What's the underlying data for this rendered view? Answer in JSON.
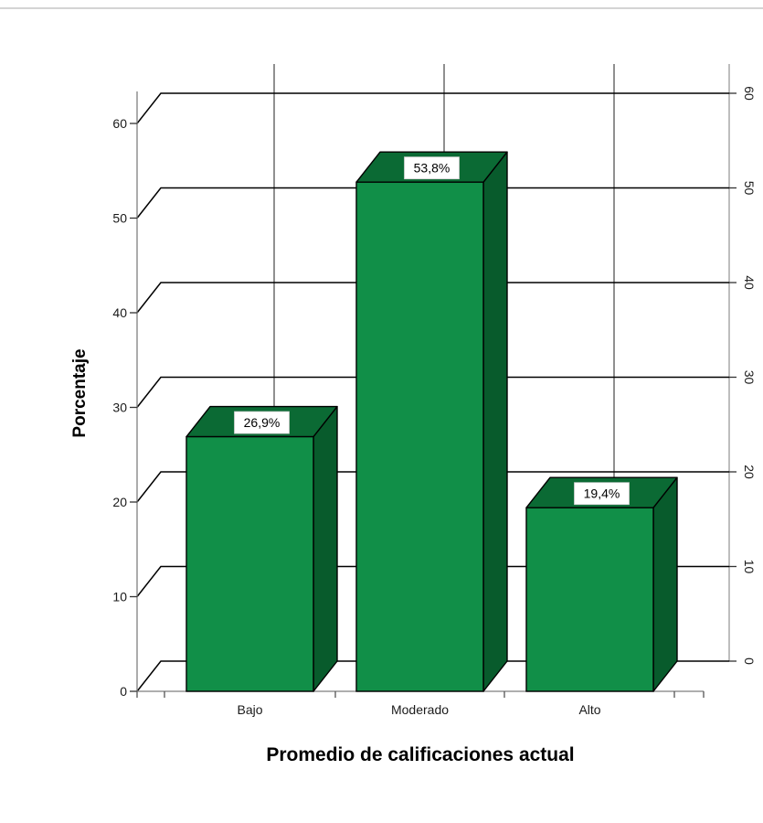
{
  "chart_data": {
    "type": "bar",
    "title": "",
    "xlabel": "Promedio de calificaciones actual",
    "ylabel": "Porcentaje",
    "categories": [
      "Bajo",
      "Moderado",
      "Alto"
    ],
    "values": [
      26.9,
      53.8,
      19.4
    ],
    "data_labels": [
      "26,9%",
      "53,8%",
      "19,4%"
    ],
    "ylim": [
      0,
      60
    ],
    "yticks": [
      "0",
      "10",
      "20",
      "30",
      "40",
      "50",
      "60"
    ],
    "right_axis_ticks": [
      "0",
      "10",
      "20",
      "30",
      "40",
      "50",
      "60"
    ],
    "grid": true,
    "style": "3d",
    "colors": {
      "bar_front": "#118f48",
      "bar_top": "#0b6a34",
      "bar_side": "#085b2c",
      "grid": "#000000",
      "axis": "#7f7f7f"
    }
  }
}
